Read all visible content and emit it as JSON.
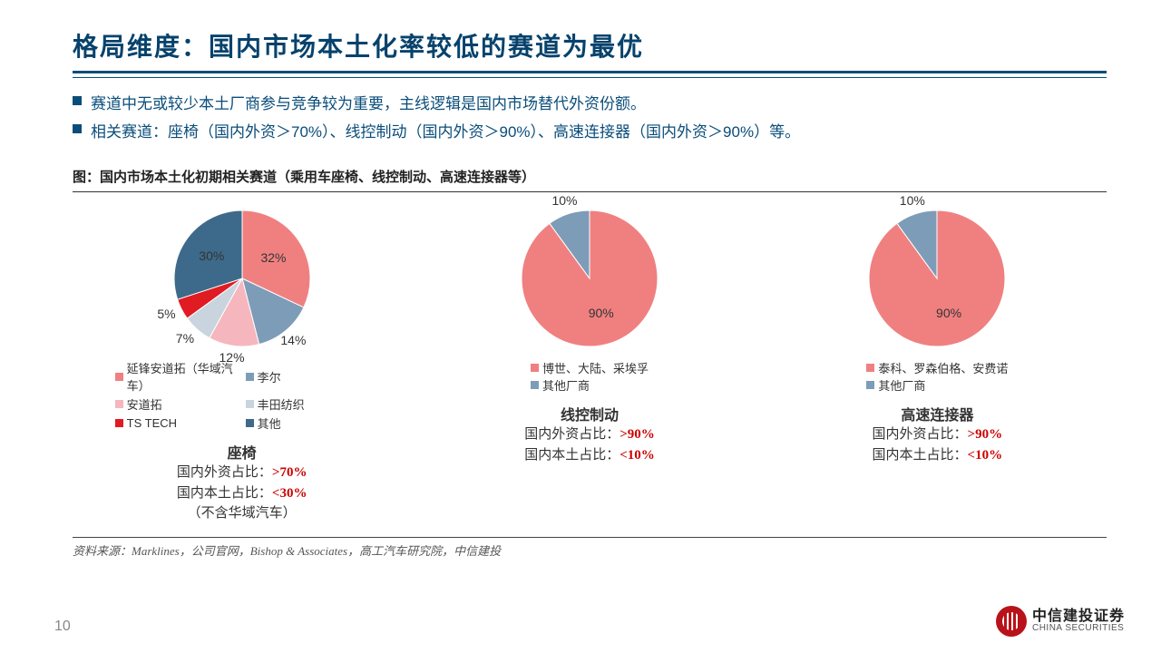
{
  "title": "格局维度：国内市场本土化率较低的赛道为最优",
  "bullets": [
    "赛道中无或较少本土厂商参与竞争较为重要，主线逻辑是国内市场替代外资份额。",
    "相关赛道：座椅（国内外资＞70%）、线控制动（国内外资＞90%）、高速连接器（国内外资＞90%）等。"
  ],
  "figure_label": "图：国内市场本土化初期相关赛道（乘用车座椅、线控制动、高速连接器等）",
  "source": "资料来源：Marklines，公司官网，Bishop & Associates，高工汽车研究院，中信建投",
  "page_number": "10",
  "logo_cn": "中信建投证券",
  "logo_en": "CHINA SECURITIES",
  "pie_radius": 75,
  "charts": [
    {
      "name": "座椅",
      "slices": [
        {
          "label": "延锋安道拓（华域汽车）",
          "value": 32,
          "color": "#f08080",
          "text": "32%"
        },
        {
          "label": "李尔",
          "value": 14,
          "color": "#7d9cb8",
          "text": "14%"
        },
        {
          "label": "安道拓",
          "value": 12,
          "color": "#f6b6bd",
          "text": "12%"
        },
        {
          "label": "丰田纺织",
          "value": 7,
          "color": "#c9d4de",
          "text": "7%"
        },
        {
          "label": "TS TECH",
          "value": 5,
          "color": "#e11b22",
          "text": "5%"
        },
        {
          "label": "其他",
          "value": 30,
          "color": "#3d6a8a",
          "text": "30%"
        }
      ],
      "legend_cols": 2,
      "stats": [
        {
          "k": "国内外资占比：",
          "v": ">70%"
        },
        {
          "k": "国内本土占比：",
          "v": "<30%"
        }
      ],
      "note": "（不含华域汽车）"
    },
    {
      "name": "线控制动",
      "slices": [
        {
          "label": "博世、大陆、采埃孚",
          "value": 90,
          "color": "#f08080",
          "text": "90%"
        },
        {
          "label": "其他厂商",
          "value": 10,
          "color": "#7d9cb8",
          "text": "10%"
        }
      ],
      "legend_cols": 1,
      "stats": [
        {
          "k": "国内外资占比：",
          "v": ">90%"
        },
        {
          "k": "国内本土占比：",
          "v": "<10%"
        }
      ],
      "note": ""
    },
    {
      "name": "高速连接器",
      "slices": [
        {
          "label": "泰科、罗森伯格、安费诺",
          "value": 90,
          "color": "#f08080",
          "text": "90%"
        },
        {
          "label": "其他厂商",
          "value": 10,
          "color": "#7d9cb8",
          "text": "10%"
        }
      ],
      "legend_cols": 1,
      "stats": [
        {
          "k": "国内外资占比：",
          "v": ">90%"
        },
        {
          "k": "国内本土占比：",
          "v": "<10%"
        }
      ],
      "note": ""
    }
  ]
}
